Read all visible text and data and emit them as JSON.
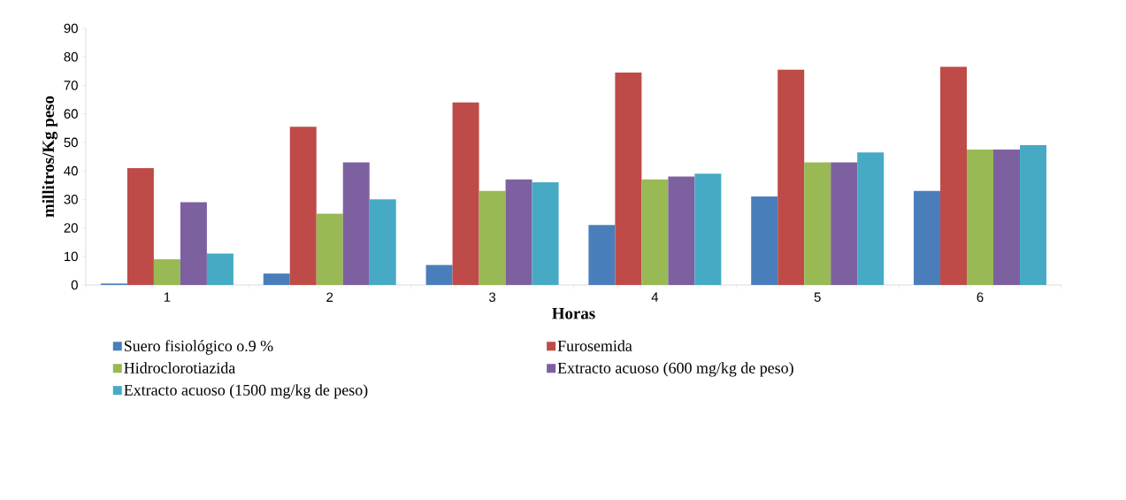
{
  "chart_data": {
    "type": "bar",
    "xlabel": "Horas",
    "ylabel": "millitros/Kg peso",
    "categories": [
      "1",
      "2",
      "3",
      "4",
      "5",
      "6"
    ],
    "series": [
      {
        "name": "Suero fisiológico o.9 %",
        "color": "#4a7ebb",
        "values": [
          0.5,
          4,
          7,
          21,
          31,
          33
        ]
      },
      {
        "name": "Furosemida",
        "color": "#be4b48",
        "values": [
          41,
          55.5,
          64,
          74.5,
          75.5,
          76.5
        ]
      },
      {
        "name": "Hidroclorotiazida",
        "color": "#98b954",
        "values": [
          9,
          25,
          33,
          37,
          43,
          47.5
        ]
      },
      {
        "name": "Extracto acuoso (600 mg/kg de peso)",
        "color": "#7d60a0",
        "values": [
          29,
          43,
          37,
          38,
          43,
          47.5
        ]
      },
      {
        "name": "Extracto acuoso (1500 mg/kg de peso)",
        "color": "#46aac5",
        "values": [
          11,
          30,
          36,
          39,
          46.5,
          49
        ]
      }
    ],
    "ylim": [
      0,
      90
    ],
    "yticks": [
      0,
      10,
      20,
      30,
      40,
      50,
      60,
      70,
      80,
      90
    ],
    "grid": false,
    "legend": "bottom"
  }
}
